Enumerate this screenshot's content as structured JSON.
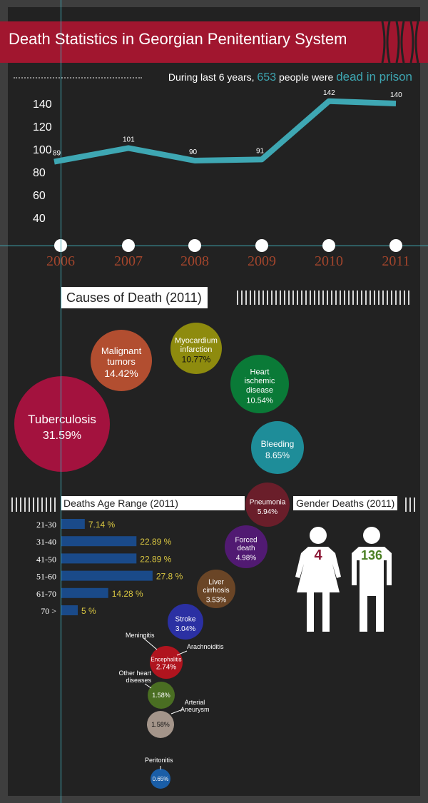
{
  "header": {
    "title": "Death Statistics in Georgian Penitentiary System",
    "subtitle_pre": "During last 6 years,",
    "subtitle_num": "653",
    "subtitle_mid": "people were",
    "subtitle_end": "dead in prison"
  },
  "colors": {
    "teal": "#3ea7b3",
    "red": "#a1162f",
    "year": "#a3452c",
    "bar": "#1a4a89",
    "pct": "#d9c641",
    "female": "#8c1836",
    "male": "#4a7f24"
  },
  "sections": {
    "causes_title": "Causes of Death (2011)",
    "age_title": "Deaths Age Range (2011)",
    "gender_title": "Gender Deaths (2011)"
  },
  "chart_data": [
    {
      "type": "line",
      "x": [
        "2006",
        "2007",
        "2008",
        "2009",
        "2010",
        "2011"
      ],
      "y": [
        89,
        101,
        90,
        91,
        142,
        140
      ],
      "yticks": [
        40,
        60,
        80,
        100,
        120,
        140
      ],
      "ylim": [
        20,
        150
      ]
    },
    {
      "type": "bubble",
      "title": "Causes of Death (2011)",
      "items": [
        {
          "label": "Tuberculosis",
          "value": 31.59,
          "text": "31.59%",
          "color": "#a3123e"
        },
        {
          "label": "Malignant tumors",
          "value": 14.42,
          "text": "14.42%",
          "color": "#b24e30"
        },
        {
          "label": "Myocardium infarction",
          "value": 10.77,
          "text": "10.77%",
          "color": "#8e8b0e"
        },
        {
          "label": "Heart ischemic disease",
          "value": 10.54,
          "text": "10.54%",
          "color": "#0a7a37"
        },
        {
          "label": "Bleeding",
          "value": 8.65,
          "text": "8.65%",
          "color": "#1e8d99"
        },
        {
          "label": "Pneumonia",
          "value": 5.94,
          "text": "5.94%",
          "color": "#6a1e2a"
        },
        {
          "label": "Forced death",
          "value": 4.98,
          "text": "4.98%",
          "color": "#511a72"
        },
        {
          "label": "Liver cirrhosis",
          "value": 3.53,
          "text": "3.53%",
          "color": "#6a4526"
        },
        {
          "label": "Stroke",
          "value": 3.04,
          "text": "3.04%",
          "color": "#2b30a3"
        },
        {
          "label": "Encephalitis",
          "value": 2.74,
          "text": "2.74%",
          "color": "#b0141e"
        },
        {
          "label": "",
          "value": 1.58,
          "text": "1.58%",
          "color": "#4a6e22"
        },
        {
          "label": "",
          "value": 1.58,
          "text": "1.58%",
          "color": "#a4958a"
        },
        {
          "label": "",
          "value": 0.65,
          "text": "0.65%",
          "color": "#1a5ea7"
        }
      ],
      "annotations": [
        "Meningitis",
        "Arachnoiditis",
        "Other heart diseases",
        "Arterial Aneurysm",
        "Peritonitis"
      ]
    },
    {
      "type": "bar",
      "title": "Deaths Age Range (2011)",
      "categories": [
        "21-30",
        "31-40",
        "41-50",
        "51-60",
        "61-70",
        "70 >"
      ],
      "values": [
        7.14,
        22.89,
        22.89,
        27.8,
        14.28,
        5
      ],
      "labels": [
        "7.14 %",
        "22.89 %",
        "22.89 %",
        "27.8 %",
        "14.28 %",
        "5 %"
      ]
    },
    {
      "type": "pictogram",
      "title": "Gender Deaths (2011)",
      "items": [
        {
          "label": "female",
          "value": 4
        },
        {
          "label": "male",
          "value": 136
        }
      ]
    }
  ]
}
